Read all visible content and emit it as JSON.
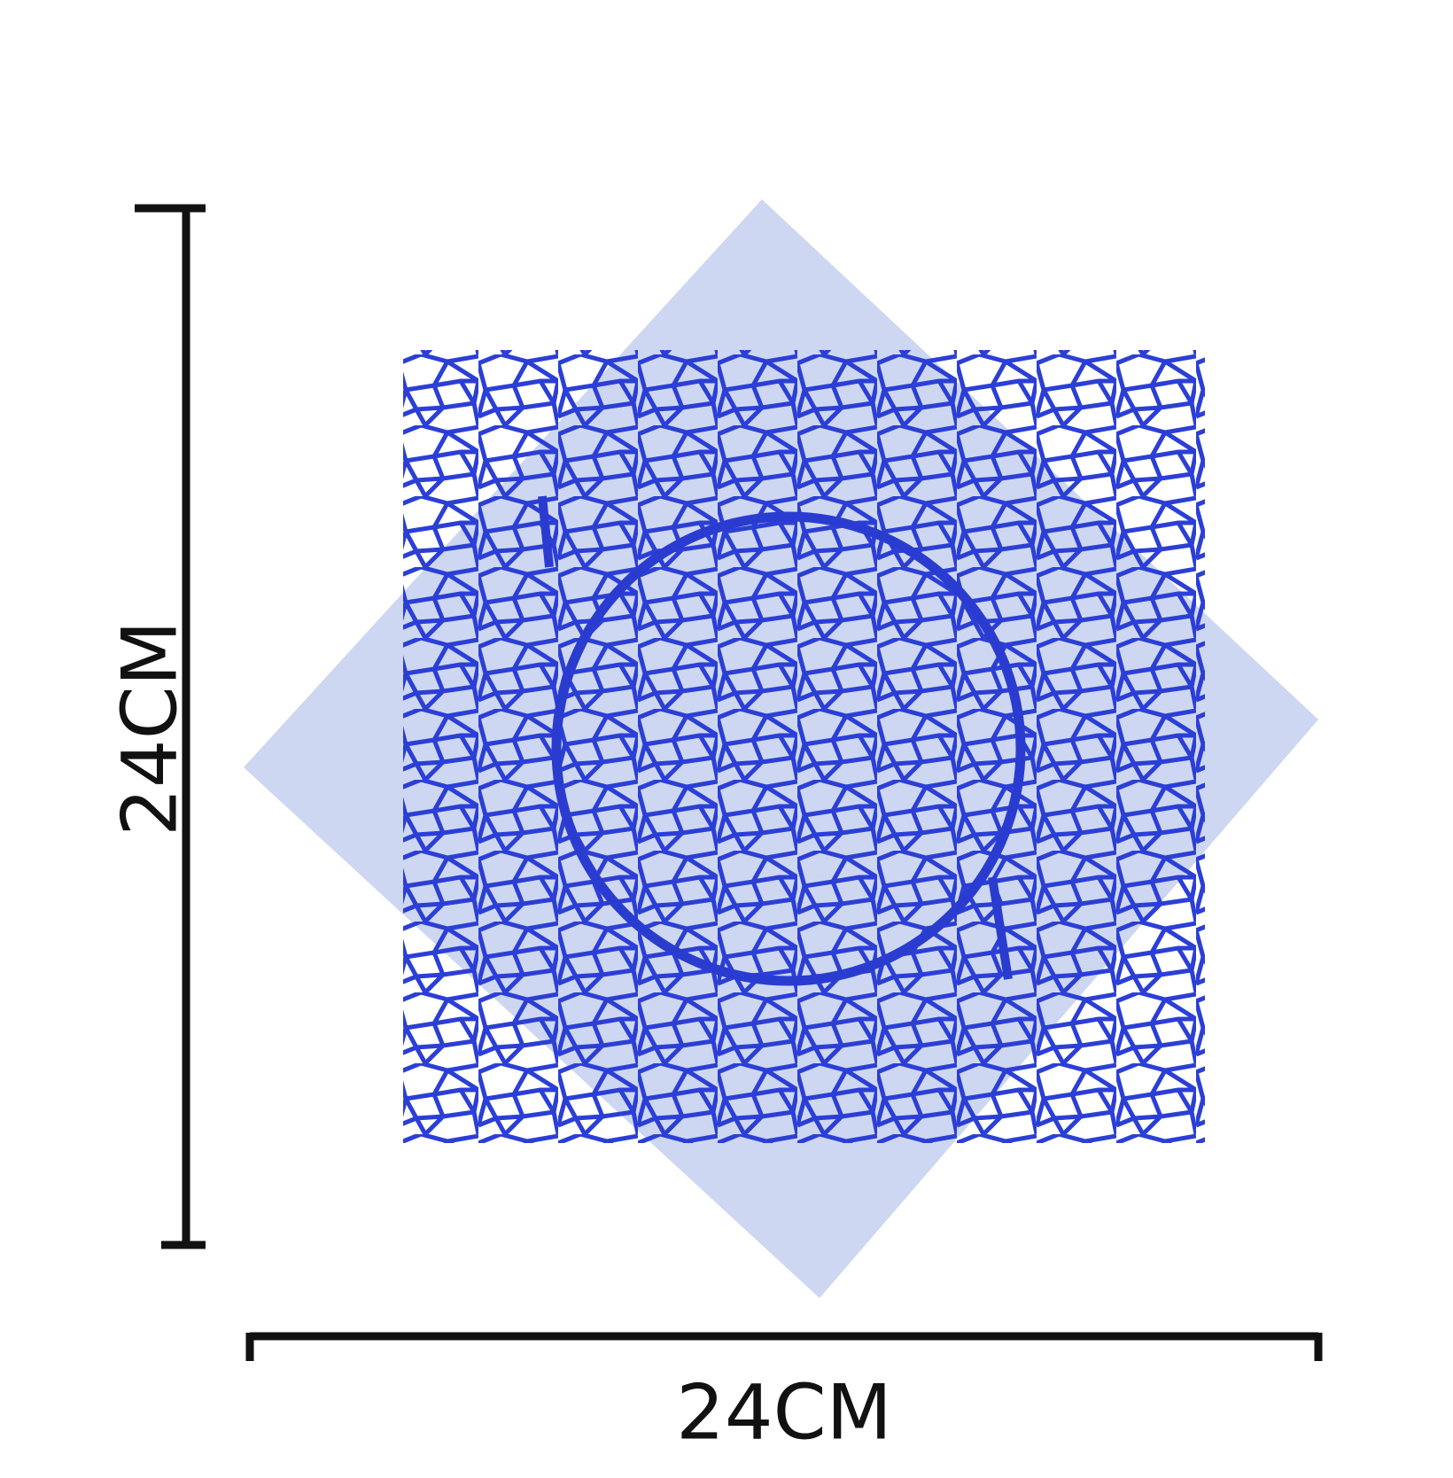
{
  "dimensions": {
    "height": "24CM",
    "width": "24CM"
  }
}
